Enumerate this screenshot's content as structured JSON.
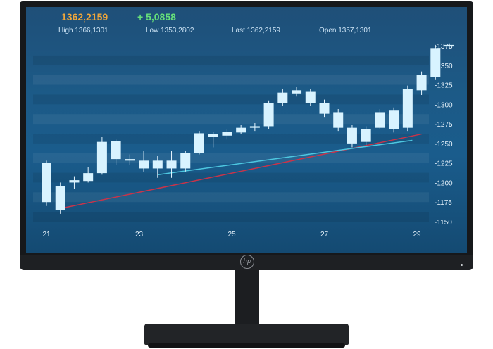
{
  "ticker": {
    "price": "1362,2159",
    "change": "+ 5,0858",
    "high": "High 1366,1301",
    "low": "Low 1353,2802",
    "last": "Last 1362,2159",
    "open": "Open 1357,1301"
  },
  "colors": {
    "price": "#f0a63a",
    "change": "#66e07a",
    "candle": "#d8f3ff",
    "trend_red": "#c8344a",
    "trend_cyan": "#4dc7e0"
  },
  "brand": {
    "logo_text": "hp"
  },
  "chart_data": {
    "type": "candlestick",
    "y_ticks": [
      "-1375",
      "-1350",
      "-1325",
      "-1300",
      "-1275",
      "-1250",
      "-1225",
      "-1200",
      "-1175",
      "-1150"
    ],
    "x_ticks": [
      "21",
      "23",
      "25",
      "27",
      "29"
    ],
    "ylim": [
      1150,
      1375
    ],
    "candles": [
      {
        "x": 21.0,
        "o": 1175,
        "c": 1225,
        "h": 1228,
        "l": 1170
      },
      {
        "x": 21.3,
        "o": 1195,
        "c": 1165,
        "h": 1200,
        "l": 1160
      },
      {
        "x": 21.6,
        "o": 1200,
        "c": 1203,
        "h": 1208,
        "l": 1192
      },
      {
        "x": 21.9,
        "o": 1202,
        "c": 1212,
        "h": 1220,
        "l": 1200
      },
      {
        "x": 22.2,
        "o": 1212,
        "c": 1252,
        "h": 1258,
        "l": 1210
      },
      {
        "x": 22.5,
        "o": 1253,
        "c": 1230,
        "h": 1255,
        "l": 1222
      },
      {
        "x": 22.8,
        "o": 1230,
        "c": 1228,
        "h": 1236,
        "l": 1222
      },
      {
        "x": 23.1,
        "o": 1228,
        "c": 1218,
        "h": 1240,
        "l": 1214
      },
      {
        "x": 23.4,
        "o": 1218,
        "c": 1228,
        "h": 1234,
        "l": 1206
      },
      {
        "x": 23.7,
        "o": 1228,
        "c": 1218,
        "h": 1240,
        "l": 1206
      },
      {
        "x": 24.0,
        "o": 1218,
        "c": 1238,
        "h": 1240,
        "l": 1214
      },
      {
        "x": 24.3,
        "o": 1238,
        "c": 1263,
        "h": 1266,
        "l": 1236
      },
      {
        "x": 24.6,
        "o": 1262,
        "c": 1258,
        "h": 1265,
        "l": 1245
      },
      {
        "x": 24.9,
        "o": 1260,
        "c": 1265,
        "h": 1268,
        "l": 1255
      },
      {
        "x": 25.2,
        "o": 1264,
        "c": 1270,
        "h": 1274,
        "l": 1262
      },
      {
        "x": 25.5,
        "o": 1270,
        "c": 1272,
        "h": 1276,
        "l": 1266
      },
      {
        "x": 25.8,
        "o": 1272,
        "c": 1302,
        "h": 1305,
        "l": 1268
      },
      {
        "x": 26.1,
        "o": 1302,
        "c": 1315,
        "h": 1320,
        "l": 1298
      },
      {
        "x": 26.4,
        "o": 1318,
        "c": 1314,
        "h": 1322,
        "l": 1310
      },
      {
        "x": 26.7,
        "o": 1316,
        "c": 1302,
        "h": 1320,
        "l": 1298
      },
      {
        "x": 27.0,
        "o": 1302,
        "c": 1288,
        "h": 1306,
        "l": 1284
      },
      {
        "x": 27.3,
        "o": 1290,
        "c": 1270,
        "h": 1294,
        "l": 1266
      },
      {
        "x": 27.6,
        "o": 1270,
        "c": 1250,
        "h": 1274,
        "l": 1245
      },
      {
        "x": 27.9,
        "o": 1252,
        "c": 1268,
        "h": 1272,
        "l": 1248
      },
      {
        "x": 28.2,
        "o": 1270,
        "c": 1290,
        "h": 1294,
        "l": 1268
      },
      {
        "x": 28.5,
        "o": 1292,
        "c": 1268,
        "h": 1296,
        "l": 1264
      },
      {
        "x": 28.8,
        "o": 1270,
        "c": 1320,
        "h": 1324,
        "l": 1266
      },
      {
        "x": 29.1,
        "o": 1318,
        "c": 1338,
        "h": 1342,
        "l": 1312
      },
      {
        "x": 29.4,
        "o": 1335,
        "c": 1372,
        "h": 1376,
        "l": 1332
      },
      {
        "x": 29.7,
        "o": 1376,
        "c": 1374,
        "h": 1378,
        "l": 1372
      }
    ],
    "trendlines": [
      {
        "x1": 21.4,
        "y1": 1168,
        "x2": 29.1,
        "y2": 1262,
        "color": "trend_red"
      },
      {
        "x1": 23.4,
        "y1": 1210,
        "x2": 28.9,
        "y2": 1254,
        "color": "trend_cyan"
      }
    ]
  }
}
